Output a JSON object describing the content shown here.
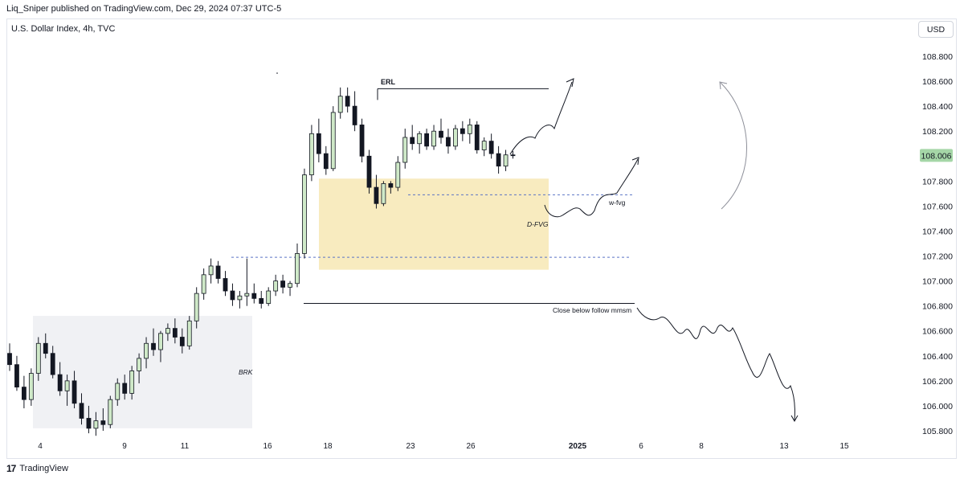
{
  "header": {
    "published": "Liq_Sniper published on TradingView.com, Dec 29, 2024 07:37 UTC-5"
  },
  "symbol_label": "U.S. Dollar Index, 4h, TVC",
  "currency_button": "USD",
  "footer": {
    "logo": "17",
    "brand": "TradingView"
  },
  "colors": {
    "up": "#cfe9c8",
    "down": "#131722",
    "current_price_bg": "#a5d6a7",
    "zone": "#f7e7b4",
    "brk_zone": "#f0f1f4",
    "level_dash": "#5b74c5"
  },
  "chart_data": {
    "type": "candlestick",
    "timeframe": "4h",
    "ylim": [
      105.75,
      108.95
    ],
    "y_ticks": [
      "108.800",
      "108.600",
      "108.400",
      "108.200",
      "108.000",
      "107.800",
      "107.600",
      "107.400",
      "107.200",
      "107.000",
      "106.800",
      "106.600",
      "106.400",
      "106.200",
      "106.000",
      "105.800"
    ],
    "x_ticks": [
      "4",
      "9",
      "11",
      "16",
      "18",
      "23",
      "26",
      "2025",
      "6",
      "8",
      "13",
      "15"
    ],
    "current_price": "108.006",
    "annotations": {
      "erl": "ERL",
      "d_fvg": "D-FVG",
      "w_fvg": "w-fvg",
      "brk": "BRK",
      "close_below": "Close below follow mmsm"
    },
    "levels": {
      "erl": 108.54,
      "w_fvg": 107.69,
      "brk_dash": 107.19,
      "close_below": 106.82
    },
    "zones": {
      "d_fvg": [
        107.09,
        107.82
      ],
      "brk": [
        105.82,
        106.72
      ]
    },
    "candles": [
      [
        106.42,
        106.5,
        106.28,
        106.33
      ],
      [
        106.33,
        106.4,
        106.12,
        106.15
      ],
      [
        106.15,
        106.24,
        105.98,
        106.05
      ],
      [
        106.05,
        106.3,
        106.0,
        106.26
      ],
      [
        106.26,
        106.55,
        106.2,
        106.5
      ],
      [
        106.5,
        106.58,
        106.38,
        106.42
      ],
      [
        106.42,
        106.48,
        106.22,
        106.25
      ],
      [
        106.25,
        106.35,
        106.08,
        106.12
      ],
      [
        106.12,
        106.25,
        106.0,
        106.2
      ],
      [
        106.2,
        106.28,
        105.98,
        106.02
      ],
      [
        106.02,
        106.1,
        105.85,
        105.9
      ],
      [
        105.9,
        106.0,
        105.78,
        105.82
      ],
      [
        105.82,
        105.95,
        105.76,
        105.88
      ],
      [
        105.88,
        105.98,
        105.8,
        105.85
      ],
      [
        105.85,
        106.08,
        105.82,
        106.05
      ],
      [
        106.05,
        106.22,
        106.0,
        106.18
      ],
      [
        106.18,
        106.25,
        106.05,
        106.1
      ],
      [
        106.1,
        106.32,
        106.05,
        106.28
      ],
      [
        106.28,
        106.42,
        106.18,
        106.38
      ],
      [
        106.38,
        106.55,
        106.3,
        106.5
      ],
      [
        106.5,
        106.62,
        106.4,
        106.45
      ],
      [
        106.45,
        106.6,
        106.35,
        106.58
      ],
      [
        106.58,
        106.66,
        106.52,
        106.62
      ],
      [
        106.62,
        106.7,
        106.5,
        106.55
      ],
      [
        106.55,
        106.62,
        106.42,
        106.48
      ],
      [
        106.48,
        106.72,
        106.45,
        106.68
      ],
      [
        106.68,
        106.95,
        106.62,
        106.9
      ],
      [
        106.9,
        107.1,
        106.85,
        107.05
      ],
      [
        107.05,
        107.18,
        106.98,
        107.12
      ],
      [
        107.12,
        107.16,
        106.98,
        107.02
      ],
      [
        107.02,
        107.08,
        106.88,
        106.92
      ],
      [
        106.92,
        106.98,
        106.8,
        106.85
      ],
      [
        106.85,
        106.92,
        106.78,
        106.88
      ],
      [
        106.88,
        107.18,
        106.8,
        106.9
      ],
      [
        106.9,
        106.98,
        106.82,
        106.86
      ],
      [
        106.86,
        106.92,
        106.78,
        106.82
      ],
      [
        106.82,
        106.95,
        106.8,
        106.92
      ],
      [
        106.92,
        107.05,
        106.88,
        107.0
      ],
      [
        107.0,
        107.05,
        106.9,
        106.95
      ],
      [
        106.95,
        107.0,
        106.88,
        106.98
      ],
      [
        106.98,
        107.3,
        106.95,
        107.22
      ],
      [
        107.22,
        107.9,
        107.18,
        107.85
      ],
      [
        107.85,
        108.25,
        107.8,
        108.18
      ],
      [
        108.18,
        108.3,
        107.95,
        108.02
      ],
      [
        108.02,
        108.08,
        107.85,
        107.9
      ],
      [
        107.9,
        108.4,
        107.88,
        108.35
      ],
      [
        108.35,
        108.55,
        108.3,
        108.48
      ],
      [
        108.48,
        108.55,
        108.35,
        108.4
      ],
      [
        108.4,
        108.52,
        108.2,
        108.25
      ],
      [
        108.25,
        108.3,
        107.95,
        108.0
      ],
      [
        108.0,
        108.05,
        107.7,
        107.75
      ],
      [
        107.75,
        107.85,
        107.58,
        107.62
      ],
      [
        107.62,
        107.8,
        107.6,
        107.78
      ],
      [
        107.78,
        107.8,
        107.7,
        107.75
      ],
      [
        107.75,
        108.0,
        107.72,
        107.95
      ],
      [
        107.95,
        108.22,
        107.9,
        108.15
      ],
      [
        108.15,
        108.25,
        108.05,
        108.1
      ],
      [
        108.1,
        108.2,
        108.02,
        108.18
      ],
      [
        108.18,
        108.22,
        108.05,
        108.08
      ],
      [
        108.08,
        108.25,
        108.05,
        108.2
      ],
      [
        108.2,
        108.3,
        108.1,
        108.15
      ],
      [
        108.15,
        108.22,
        108.02,
        108.08
      ],
      [
        108.08,
        108.25,
        108.05,
        108.22
      ],
      [
        108.22,
        108.28,
        108.12,
        108.18
      ],
      [
        108.18,
        108.3,
        108.1,
        108.25
      ],
      [
        108.25,
        108.28,
        108.02,
        108.05
      ],
      [
        108.05,
        108.15,
        108.0,
        108.12
      ],
      [
        108.12,
        108.18,
        107.98,
        108.02
      ],
      [
        108.02,
        108.08,
        107.86,
        107.92
      ],
      [
        107.92,
        108.05,
        107.88,
        108.01
      ],
      [
        108.01,
        108.04,
        107.98,
        108.006
      ]
    ]
  }
}
